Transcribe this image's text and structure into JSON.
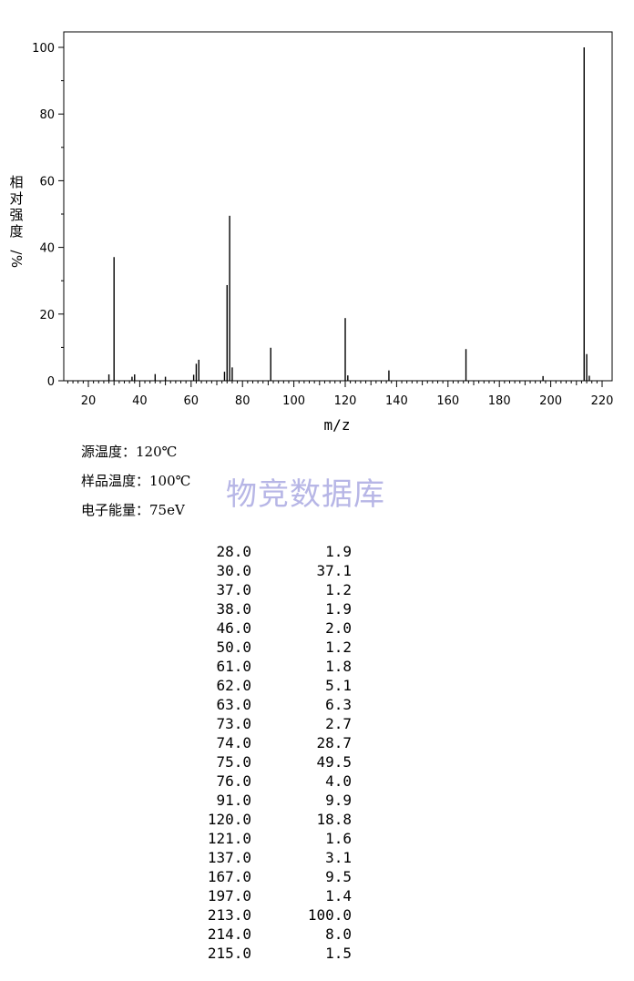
{
  "chart_data": {
    "type": "bar",
    "xlabel": "m/z",
    "ylabel": "相对强度/%",
    "xlim": [
      10,
      222
    ],
    "ylim": [
      0,
      105
    ],
    "xticks": [
      20,
      40,
      60,
      80,
      100,
      120,
      140,
      160,
      180,
      200,
      220
    ],
    "yticks": [
      0,
      20,
      40,
      60,
      80,
      100
    ],
    "peaks": [
      {
        "mz": 28.0,
        "intensity": 1.9
      },
      {
        "mz": 30.0,
        "intensity": 37.1
      },
      {
        "mz": 37.0,
        "intensity": 1.2
      },
      {
        "mz": 38.0,
        "intensity": 1.9
      },
      {
        "mz": 46.0,
        "intensity": 2.0
      },
      {
        "mz": 50.0,
        "intensity": 1.2
      },
      {
        "mz": 61.0,
        "intensity": 1.8
      },
      {
        "mz": 62.0,
        "intensity": 5.1
      },
      {
        "mz": 63.0,
        "intensity": 6.3
      },
      {
        "mz": 73.0,
        "intensity": 2.7
      },
      {
        "mz": 74.0,
        "intensity": 28.7
      },
      {
        "mz": 75.0,
        "intensity": 49.5
      },
      {
        "mz": 76.0,
        "intensity": 4.0
      },
      {
        "mz": 91.0,
        "intensity": 9.9
      },
      {
        "mz": 120.0,
        "intensity": 18.8
      },
      {
        "mz": 121.0,
        "intensity": 1.6
      },
      {
        "mz": 137.0,
        "intensity": 3.1
      },
      {
        "mz": 167.0,
        "intensity": 9.5
      },
      {
        "mz": 197.0,
        "intensity": 1.4
      },
      {
        "mz": 213.0,
        "intensity": 100.0
      },
      {
        "mz": 214.0,
        "intensity": 8.0
      },
      {
        "mz": 215.0,
        "intensity": 1.5
      }
    ]
  },
  "conditions": {
    "source_temp": "源温度：120℃",
    "sample_temp": "样品温度：100℃",
    "electron_energy": "电子能量：75eV"
  },
  "watermark": "物竞数据库",
  "peak_table": [
    [
      "28.0",
      "1.9"
    ],
    [
      "30.0",
      "37.1"
    ],
    [
      "37.0",
      "1.2"
    ],
    [
      "38.0",
      "1.9"
    ],
    [
      "46.0",
      "2.0"
    ],
    [
      "50.0",
      "1.2"
    ],
    [
      "61.0",
      "1.8"
    ],
    [
      "62.0",
      "5.1"
    ],
    [
      "63.0",
      "6.3"
    ],
    [
      "73.0",
      "2.7"
    ],
    [
      "74.0",
      "28.7"
    ],
    [
      "75.0",
      "49.5"
    ],
    [
      "76.0",
      "4.0"
    ],
    [
      "91.0",
      "9.9"
    ],
    [
      "120.0",
      "18.8"
    ],
    [
      "121.0",
      "1.6"
    ],
    [
      "137.0",
      "3.1"
    ],
    [
      "167.0",
      "9.5"
    ],
    [
      "197.0",
      "1.4"
    ],
    [
      "213.0",
      "100.0"
    ],
    [
      "214.0",
      "8.0"
    ],
    [
      "215.0",
      "1.5"
    ]
  ]
}
